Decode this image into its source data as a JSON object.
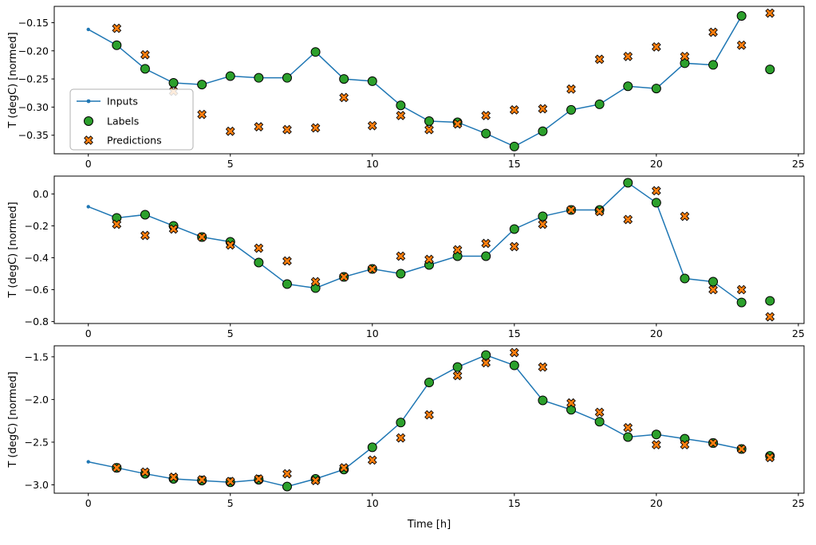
{
  "figure": {
    "xlabel": "Time [h]",
    "ylabel": "T (degC) [normed]",
    "legend": {
      "entries": [
        {
          "label": "Inputs",
          "type": "line",
          "color": "#1f77b4"
        },
        {
          "label": "Labels",
          "type": "circle",
          "color": "#2ca02c"
        },
        {
          "label": "Predictions",
          "type": "x",
          "color": "#ff7f0e"
        }
      ]
    }
  },
  "chart_data": [
    {
      "type": "line",
      "subplot": 1,
      "ylabel": "T (degC) [normed]",
      "xlim": [
        -1.2,
        25.2
      ],
      "ylim": [
        -0.383,
        -0.121
      ],
      "xticks": [
        0,
        5,
        10,
        15,
        20,
        25
      ],
      "xtick_labels": [
        "0",
        "5",
        "10",
        "15",
        "20",
        "25"
      ],
      "yticks": [
        -0.15,
        -0.2,
        -0.25,
        -0.3,
        -0.35
      ],
      "ytick_labels": [
        "−0.15",
        "−0.20",
        "−0.25",
        "−0.30",
        "−0.35"
      ],
      "legend_position": "center-left",
      "grid": false,
      "series": [
        {
          "name": "Inputs",
          "type": "line",
          "color": "#1f77b4",
          "x": [
            0,
            1,
            2,
            3,
            4,
            5,
            6,
            7,
            8,
            9,
            10,
            11,
            12,
            13,
            14,
            15,
            16,
            17,
            18,
            19,
            20,
            21,
            22,
            23
          ],
          "y": [
            -0.162,
            -0.19,
            -0.232,
            -0.257,
            -0.26,
            -0.245,
            -0.248,
            -0.248,
            -0.202,
            -0.25,
            -0.254,
            -0.297,
            -0.325,
            -0.327,
            -0.347,
            -0.37,
            -0.343,
            -0.305,
            -0.295,
            -0.263,
            -0.267,
            -0.222,
            -0.225,
            -0.138
          ]
        },
        {
          "name": "Labels",
          "type": "scatter-circle",
          "color": "#2ca02c",
          "x": [
            1,
            2,
            3,
            4,
            5,
            6,
            7,
            8,
            9,
            10,
            11,
            12,
            13,
            14,
            15,
            16,
            17,
            18,
            19,
            20,
            21,
            22,
            23,
            24
          ],
          "y": [
            -0.19,
            -0.232,
            -0.257,
            -0.26,
            -0.245,
            -0.248,
            -0.248,
            -0.202,
            -0.25,
            -0.254,
            -0.297,
            -0.325,
            -0.327,
            -0.347,
            -0.37,
            -0.343,
            -0.305,
            -0.295,
            -0.263,
            -0.267,
            -0.222,
            -0.225,
            -0.138,
            -0.233
          ]
        },
        {
          "name": "Predictions",
          "type": "scatter-x",
          "color": "#ff7f0e",
          "x": [
            1,
            2,
            3,
            4,
            5,
            6,
            7,
            8,
            9,
            10,
            11,
            12,
            13,
            14,
            15,
            16,
            17,
            18,
            19,
            20,
            21,
            22,
            23,
            24
          ],
          "y": [
            -0.16,
            -0.207,
            -0.272,
            -0.313,
            -0.343,
            -0.335,
            -0.34,
            -0.337,
            -0.283,
            -0.333,
            -0.315,
            -0.34,
            -0.33,
            -0.315,
            -0.305,
            -0.303,
            -0.268,
            -0.215,
            -0.21,
            -0.193,
            -0.21,
            -0.167,
            -0.19,
            -0.133
          ]
        }
      ]
    },
    {
      "type": "line",
      "subplot": 2,
      "ylabel": "T (degC) [normed]",
      "xlim": [
        -1.2,
        25.2
      ],
      "ylim": [
        -0.812,
        0.112
      ],
      "xticks": [
        0,
        5,
        10,
        15,
        20,
        25
      ],
      "xtick_labels": [
        "0",
        "5",
        "10",
        "15",
        "20",
        "25"
      ],
      "yticks": [
        0.0,
        -0.2,
        -0.4,
        -0.6,
        -0.8
      ],
      "ytick_labels": [
        "0.0",
        "−0.2",
        "−0.4",
        "−0.6",
        "−0.8"
      ],
      "grid": false,
      "series": [
        {
          "name": "Inputs",
          "type": "line",
          "color": "#1f77b4",
          "x": [
            0,
            1,
            2,
            3,
            4,
            5,
            6,
            7,
            8,
            9,
            10,
            11,
            12,
            13,
            14,
            15,
            16,
            17,
            18,
            19,
            20,
            21,
            22,
            23
          ],
          "y": [
            -0.08,
            -0.15,
            -0.13,
            -0.2,
            -0.27,
            -0.3,
            -0.43,
            -0.565,
            -0.59,
            -0.52,
            -0.47,
            -0.5,
            -0.445,
            -0.39,
            -0.39,
            -0.22,
            -0.14,
            -0.1,
            -0.1,
            0.07,
            -0.055,
            -0.53,
            -0.55,
            -0.68
          ]
        },
        {
          "name": "Labels",
          "type": "scatter-circle",
          "color": "#2ca02c",
          "x": [
            1,
            2,
            3,
            4,
            5,
            6,
            7,
            8,
            9,
            10,
            11,
            12,
            13,
            14,
            15,
            16,
            17,
            18,
            19,
            20,
            21,
            22,
            23,
            24
          ],
          "y": [
            -0.15,
            -0.13,
            -0.2,
            -0.27,
            -0.3,
            -0.43,
            -0.565,
            -0.59,
            -0.52,
            -0.47,
            -0.5,
            -0.445,
            -0.39,
            -0.39,
            -0.22,
            -0.14,
            -0.1,
            -0.1,
            0.07,
            -0.055,
            -0.53,
            -0.55,
            -0.68,
            -0.67
          ]
        },
        {
          "name": "Predictions",
          "type": "scatter-x",
          "color": "#ff7f0e",
          "x": [
            1,
            2,
            3,
            4,
            5,
            6,
            7,
            8,
            9,
            10,
            11,
            12,
            13,
            14,
            15,
            16,
            17,
            18,
            19,
            20,
            21,
            22,
            23,
            24
          ],
          "y": [
            -0.19,
            -0.26,
            -0.22,
            -0.27,
            -0.32,
            -0.34,
            -0.42,
            -0.55,
            -0.52,
            -0.47,
            -0.39,
            -0.41,
            -0.35,
            -0.31,
            -0.33,
            -0.19,
            -0.1,
            -0.11,
            -0.16,
            0.02,
            -0.14,
            -0.6,
            -0.6,
            -0.77
          ]
        }
      ]
    },
    {
      "type": "line",
      "subplot": 3,
      "ylabel": "T (degC) [normed]",
      "xlabel": "Time [h]",
      "xlim": [
        -1.2,
        25.2
      ],
      "ylim": [
        -3.098,
        -1.371
      ],
      "xticks": [
        0,
        5,
        10,
        15,
        20,
        25
      ],
      "xtick_labels": [
        "0",
        "5",
        "10",
        "15",
        "20",
        "25"
      ],
      "yticks": [
        -1.5,
        -2.0,
        -2.5,
        -3.0
      ],
      "ytick_labels": [
        "−1.5",
        "−2.0",
        "−2.5",
        "−3.0"
      ],
      "grid": false,
      "series": [
        {
          "name": "Inputs",
          "type": "line",
          "color": "#1f77b4",
          "x": [
            0,
            1,
            2,
            3,
            4,
            5,
            6,
            7,
            8,
            9,
            10,
            11,
            12,
            13,
            14,
            15,
            16,
            17,
            18,
            19,
            20,
            21,
            22,
            23
          ],
          "y": [
            -2.73,
            -2.8,
            -2.87,
            -2.93,
            -2.95,
            -2.97,
            -2.94,
            -3.02,
            -2.93,
            -2.82,
            -2.56,
            -2.27,
            -1.8,
            -1.62,
            -1.48,
            -1.6,
            -2.01,
            -2.12,
            -2.26,
            -2.44,
            -2.41,
            -2.46,
            -2.51,
            -2.58
          ]
        },
        {
          "name": "Labels",
          "type": "scatter-circle",
          "color": "#2ca02c",
          "x": [
            1,
            2,
            3,
            4,
            5,
            6,
            7,
            8,
            9,
            10,
            11,
            12,
            13,
            14,
            15,
            16,
            17,
            18,
            19,
            20,
            21,
            22,
            23,
            24
          ],
          "y": [
            -2.8,
            -2.87,
            -2.93,
            -2.95,
            -2.97,
            -2.94,
            -3.02,
            -2.93,
            -2.82,
            -2.56,
            -2.27,
            -1.8,
            -1.62,
            -1.48,
            -1.6,
            -2.01,
            -2.12,
            -2.26,
            -2.44,
            -2.41,
            -2.46,
            -2.51,
            -2.58,
            -2.66
          ]
        },
        {
          "name": "Predictions",
          "type": "scatter-x",
          "color": "#ff7f0e",
          "x": [
            1,
            2,
            3,
            4,
            5,
            6,
            7,
            8,
            9,
            10,
            11,
            12,
            13,
            14,
            15,
            16,
            17,
            18,
            19,
            20,
            21,
            22,
            23,
            24
          ],
          "y": [
            -2.8,
            -2.85,
            -2.91,
            -2.94,
            -2.96,
            -2.93,
            -2.87,
            -2.95,
            -2.8,
            -2.71,
            -2.45,
            -2.18,
            -1.72,
            -1.57,
            -1.45,
            -1.62,
            -2.04,
            -2.15,
            -2.33,
            -2.53,
            -2.53,
            -2.51,
            -2.58,
            -2.68
          ]
        }
      ]
    }
  ]
}
